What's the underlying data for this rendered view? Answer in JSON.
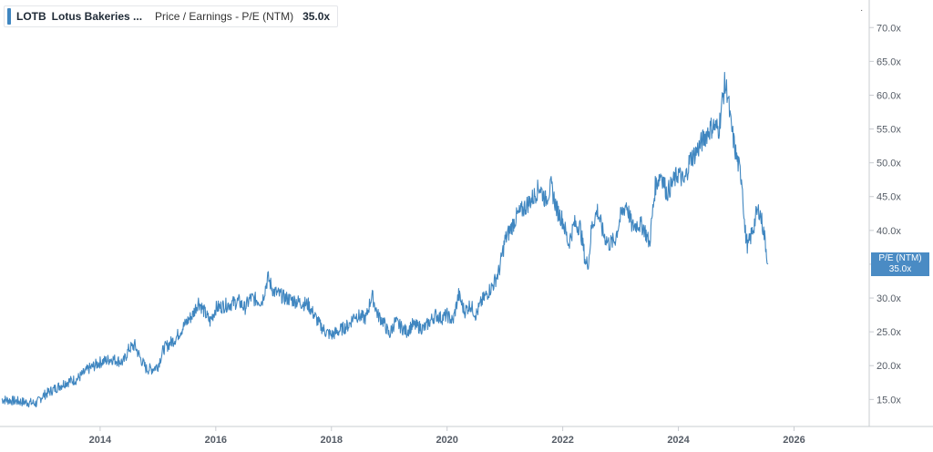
{
  "legend": {
    "ticker": "LOTB",
    "company": "Lotus Bakeries ...",
    "metric": "Price / Earnings - P/E (NTM)",
    "value": "35.0x"
  },
  "menu_icon": "dots-menu-icon",
  "current_label": {
    "line1": "P/E (NTM)",
    "line2": "35.0x"
  },
  "colors": {
    "series": "#3f86c0",
    "label_bg": "#4a8bc4",
    "axis": "#c9ccd1"
  },
  "chart_data": {
    "type": "line",
    "title": "",
    "xlabel": "",
    "ylabel": "",
    "xlim": [
      2012.3,
      2027.3
    ],
    "ylim": [
      11.0,
      73.0
    ],
    "x_ticks": [
      2014,
      2016,
      2018,
      2020,
      2022,
      2024,
      2026
    ],
    "y_ticks": [
      15,
      20,
      25,
      30,
      35,
      40,
      45,
      50,
      55,
      60,
      65,
      70
    ],
    "y_tick_labels": [
      "15.0x",
      "20.0x",
      "25.0x",
      "30.0x",
      "35.0x",
      "40.0x",
      "45.0x",
      "50.0x",
      "55.0x",
      "60.0x",
      "65.0x",
      "70.0x"
    ],
    "grid": false,
    "series": [
      {
        "name": "P/E (NTM)",
        "x": [
          2012.3,
          2012.5,
          2012.7,
          2012.9,
          2013.0,
          2013.2,
          2013.4,
          2013.6,
          2013.8,
          2014.0,
          2014.2,
          2014.4,
          2014.5,
          2014.6,
          2014.7,
          2014.8,
          2014.9,
          2015.0,
          2015.1,
          2015.3,
          2015.5,
          2015.6,
          2015.7,
          2015.8,
          2015.9,
          2016.0,
          2016.2,
          2016.4,
          2016.5,
          2016.6,
          2016.8,
          2016.9,
          2017.0,
          2017.2,
          2017.4,
          2017.6,
          2017.7,
          2017.8,
          2017.9,
          2018.0,
          2018.2,
          2018.3,
          2018.4,
          2018.6,
          2018.7,
          2018.8,
          2018.9,
          2019.0,
          2019.1,
          2019.3,
          2019.4,
          2019.6,
          2019.8,
          2019.9,
          2020.0,
          2020.1,
          2020.2,
          2020.3,
          2020.4,
          2020.5,
          2020.6,
          2020.8,
          2020.9,
          2021.0,
          2021.2,
          2021.4,
          2021.5,
          2021.6,
          2021.7,
          2021.8,
          2021.9,
          2022.0,
          2022.1,
          2022.2,
          2022.3,
          2022.4,
          2022.45,
          2022.5,
          2022.6,
          2022.7,
          2022.8,
          2022.9,
          2023.0,
          2023.1,
          2023.2,
          2023.3,
          2023.4,
          2023.5,
          2023.6,
          2023.7,
          2023.8,
          2023.9,
          2024.0,
          2024.1,
          2024.2,
          2024.3,
          2024.4,
          2024.5,
          2024.6,
          2024.7,
          2024.75,
          2024.8,
          2024.85,
          2024.9,
          2024.95,
          2025.0,
          2025.1,
          2025.15,
          2025.2,
          2025.25,
          2025.3,
          2025.35,
          2025.4,
          2025.45,
          2025.5,
          2025.55
        ],
        "values": [
          15.0,
          14.8,
          14.6,
          14.4,
          15.5,
          16.5,
          17.5,
          18.0,
          19.5,
          20.5,
          21.0,
          20.5,
          22.5,
          23.0,
          21.0,
          19.5,
          19.5,
          20.0,
          22.5,
          24.0,
          26.5,
          27.5,
          29.5,
          28.0,
          26.5,
          28.5,
          29.0,
          29.5,
          28.5,
          30.0,
          29.5,
          33.0,
          31.0,
          30.0,
          29.5,
          29.0,
          27.5,
          26.0,
          25.0,
          24.5,
          25.5,
          26.0,
          27.5,
          27.0,
          30.5,
          27.5,
          26.5,
          24.5,
          26.5,
          25.0,
          26.0,
          25.5,
          27.5,
          27.0,
          27.5,
          26.5,
          30.5,
          28.0,
          29.0,
          27.5,
          29.5,
          32.0,
          34.0,
          38.5,
          42.0,
          44.0,
          45.0,
          46.5,
          44.5,
          46.5,
          43.0,
          41.5,
          38.0,
          41.0,
          40.5,
          35.0,
          35.5,
          40.5,
          43.0,
          39.5,
          38.0,
          38.5,
          42.0,
          44.0,
          40.5,
          41.0,
          40.5,
          38.0,
          46.5,
          48.5,
          45.5,
          47.0,
          48.5,
          47.0,
          50.5,
          51.5,
          53.0,
          54.5,
          55.5,
          55.0,
          58.5,
          61.5,
          60.5,
          56.0,
          53.5,
          51.0,
          47.5,
          40.0,
          37.5,
          39.0,
          40.5,
          42.5,
          43.0,
          41.0,
          38.5,
          35.0
        ]
      }
    ],
    "current_value": 35.0
  }
}
